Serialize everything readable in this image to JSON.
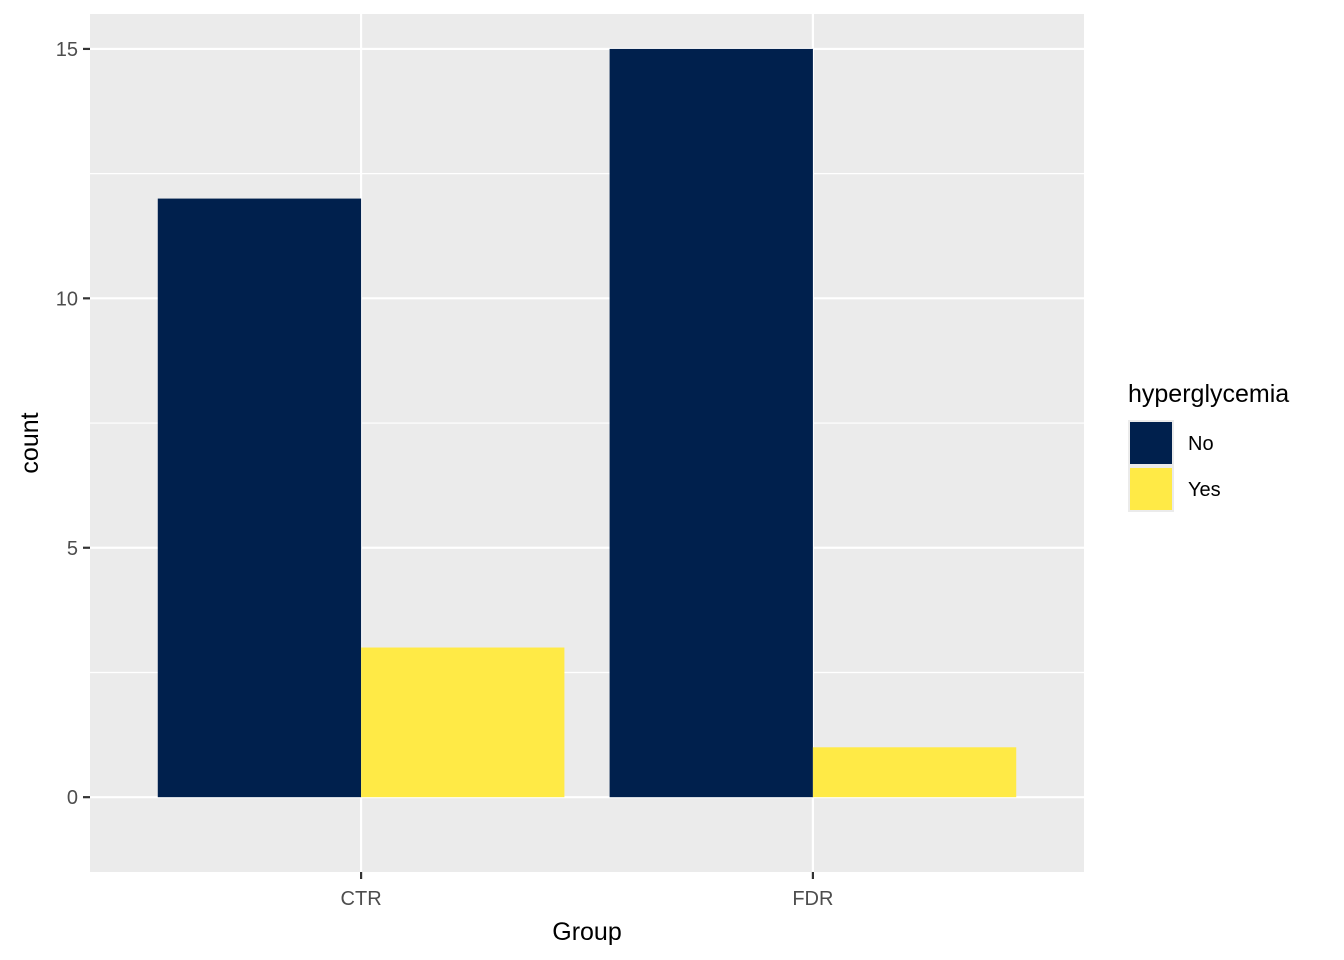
{
  "chart_data": {
    "type": "bar",
    "categories": [
      "CTR",
      "FDR"
    ],
    "series": [
      {
        "name": "No",
        "values": [
          12,
          15
        ]
      },
      {
        "name": "Yes",
        "values": [
          3,
          1
        ]
      }
    ],
    "xlabel": "Group",
    "ylabel": "count",
    "ylim": [
      -1.5,
      15.7
    ],
    "yticks": [
      0,
      5,
      10,
      15
    ],
    "ytick_labels": [
      "0",
      "5",
      "10",
      "15"
    ],
    "grid": true,
    "legend": {
      "title": "hyperglycemia",
      "position": "right",
      "entries": [
        "No",
        "Yes"
      ]
    },
    "colors": {
      "No": "#00204D",
      "Yes": "#FFEA46",
      "panel": "#EBEBEB",
      "grid": "#FFFFFF"
    }
  }
}
